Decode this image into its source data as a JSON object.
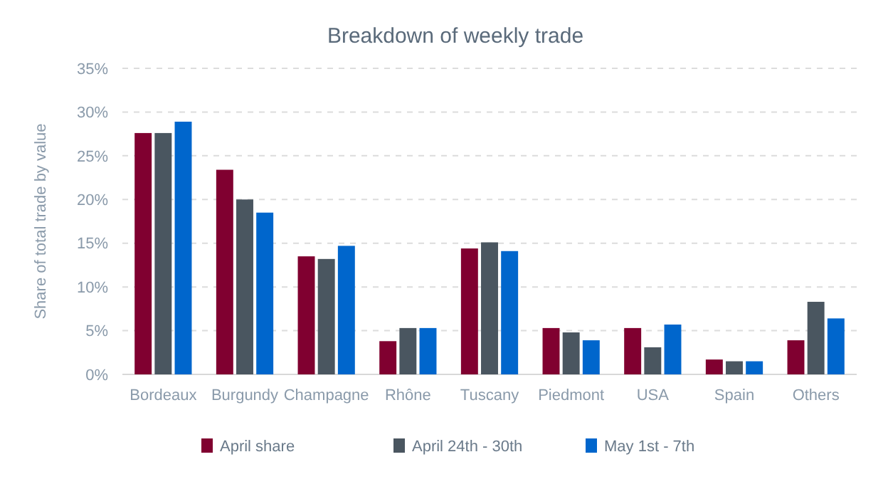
{
  "chart_data": {
    "type": "bar",
    "title": "Breakdown of weekly trade",
    "ylabel": "Share of total trade by value",
    "categories": [
      "Bordeaux",
      "Burgundy",
      "Champagne",
      "Rhône",
      "Tuscany",
      "Piedmont",
      "USA",
      "Spain",
      "Others"
    ],
    "series": [
      {
        "name": "April share",
        "color": "#800030",
        "values": [
          27.6,
          23.4,
          13.5,
          3.8,
          14.4,
          5.3,
          5.3,
          1.7,
          3.9
        ]
      },
      {
        "name": "April 24th - 30th",
        "color": "#4a5660",
        "values": [
          27.6,
          20.0,
          13.2,
          5.3,
          15.1,
          4.8,
          3.1,
          1.5,
          8.3
        ]
      },
      {
        "name": "May 1st - 7th",
        "color": "#0066cc",
        "values": [
          28.9,
          18.5,
          14.7,
          5.3,
          14.1,
          3.9,
          5.7,
          1.5,
          6.4
        ]
      }
    ],
    "ylim": [
      0,
      35
    ],
    "yticks": [
      {
        "value": 0,
        "label": "0%"
      },
      {
        "value": 5,
        "label": "5%"
      },
      {
        "value": 10,
        "label": "10%"
      },
      {
        "value": 15,
        "label": "15%"
      },
      {
        "value": 20,
        "label": "20%"
      },
      {
        "value": 25,
        "label": "25%"
      },
      {
        "value": 30,
        "label": "30%"
      },
      {
        "value": 35,
        "label": "35%"
      }
    ],
    "grid": "y",
    "legend": "bottom"
  }
}
